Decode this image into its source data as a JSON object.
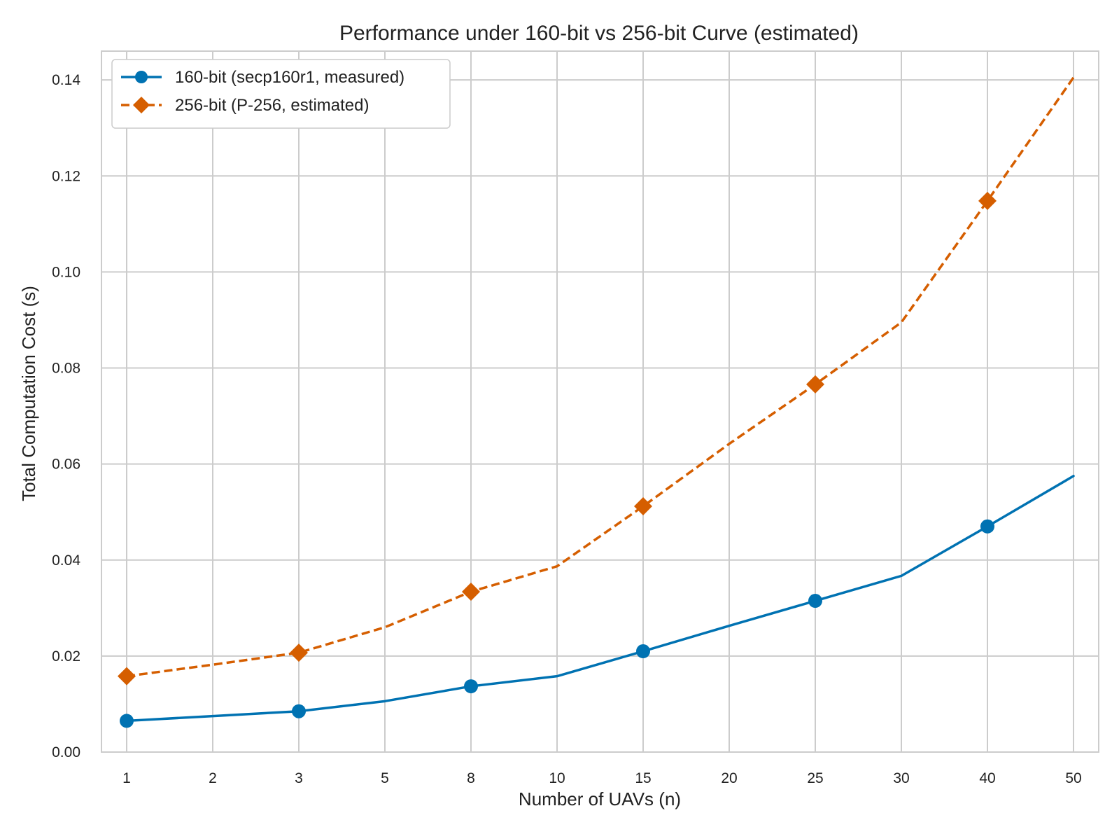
{
  "chart_data": {
    "type": "line",
    "title": "Performance under 160-bit vs 256-bit Curve (estimated)",
    "xlabel": "Number of UAVs (n)",
    "ylabel": "Total Computation Cost (s)",
    "categories": [
      "1",
      "2",
      "3",
      "5",
      "8",
      "10",
      "15",
      "20",
      "25",
      "30",
      "40",
      "50"
    ],
    "ylim": [
      0.0,
      0.146
    ],
    "yticks": [
      0.0,
      0.02,
      0.04,
      0.06,
      0.08,
      0.1,
      0.12,
      0.14
    ],
    "ytick_labels": [
      "0.00",
      "0.02",
      "0.04",
      "0.06",
      "0.08",
      "0.10",
      "0.12",
      "0.14"
    ],
    "grid": true,
    "legend_position": "top-left",
    "series": [
      {
        "name": "160-bit (secp160r1, measured)",
        "color": "#0072B2",
        "line_style": "solid",
        "marker": "circle",
        "values": [
          0.0065,
          0.0075,
          0.0085,
          0.0106,
          0.0137,
          0.0158,
          0.021,
          0.0263,
          0.0315,
          0.0367,
          0.047,
          0.0575
        ],
        "marker_indices": [
          0,
          2,
          4,
          6,
          8,
          10
        ]
      },
      {
        "name": "256-bit (P-256, estimated)",
        "color": "#D55E00",
        "line_style": "dashed",
        "marker": "diamond",
        "values": [
          0.0158,
          0.0182,
          0.0207,
          0.026,
          0.0334,
          0.0387,
          0.0512,
          0.0642,
          0.0766,
          0.0895,
          0.1148,
          0.1405
        ],
        "marker_indices": [
          0,
          2,
          4,
          6,
          8,
          10
        ]
      }
    ]
  }
}
